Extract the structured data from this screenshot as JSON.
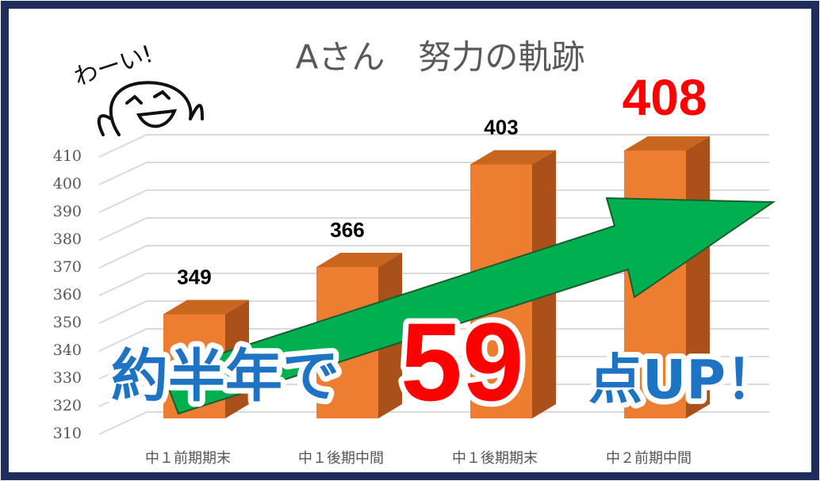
{
  "chart_data": {
    "type": "bar3d",
    "title": "Aさん　努力の軌跡",
    "categories": [
      "中１前期期末",
      "中１後期中間",
      "中１後期期末",
      "中２前期中間"
    ],
    "values": [
      349,
      366,
      403,
      408
    ],
    "color": "#ed7d31",
    "label_colors": [
      "#000000",
      "#000000",
      "#000000",
      "#ff0000"
    ],
    "ylim": [
      310,
      410
    ],
    "yticks": [
      310,
      320,
      330,
      340,
      350,
      360,
      370,
      380,
      390,
      400,
      410
    ],
    "grid": true,
    "doodle_text": "わーい!",
    "callout": {
      "text_before": "約半年で",
      "value": 59,
      "text_after": "点UP！"
    }
  }
}
